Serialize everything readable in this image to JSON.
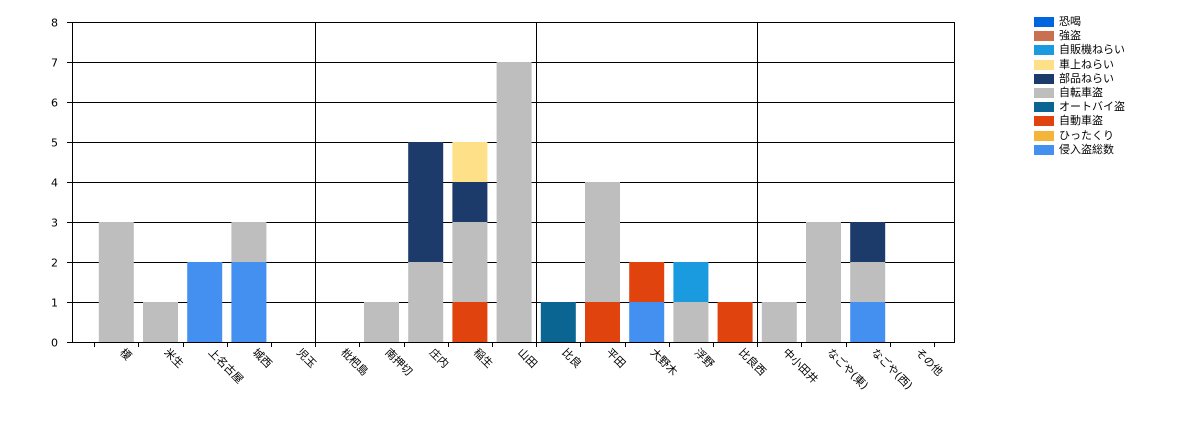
{
  "chart_data": {
    "type": "bar",
    "stacked": true,
    "title": "",
    "xlabel": "",
    "ylabel": "",
    "ylim": [
      0,
      8
    ],
    "yticks": [
      "0",
      "1",
      "2",
      "3",
      "4",
      "5",
      "6",
      "7",
      "8"
    ],
    "grid": "on",
    "legend_position": "right",
    "categories": [
      "榎",
      "米生",
      "上名古屋",
      "城西",
      "児玉",
      "枇杷島",
      "南押切",
      "庄内",
      "稲生",
      "山田",
      "比良",
      "平田",
      "大野木",
      "浮野",
      "比良西",
      "中小田井",
      "なごや(東)",
      "なごや(西)",
      "その他"
    ],
    "series": [
      {
        "name": "恐喝",
        "color": "#0066dd",
        "values": [
          0,
          0,
          0,
          0,
          0,
          0,
          0,
          0,
          0,
          0,
          0,
          0,
          0,
          0,
          0,
          0,
          0,
          0,
          0
        ]
      },
      {
        "name": "強盗",
        "color": "#c87050",
        "values": [
          0,
          0,
          0,
          0,
          0,
          0,
          0,
          0,
          0,
          0,
          0,
          0,
          0,
          0,
          0,
          0,
          0,
          0,
          0
        ]
      },
      {
        "name": "自販機ねらい",
        "color": "#1a9be0",
        "values": [
          0,
          0,
          0,
          0,
          0,
          0,
          0,
          0,
          0,
          0,
          0,
          0,
          0,
          1,
          0,
          0,
          0,
          0,
          0
        ]
      },
      {
        "name": "車上ねらい",
        "color": "#fde088",
        "values": [
          0,
          0,
          0,
          0,
          0,
          0,
          0,
          0,
          1,
          0,
          0,
          0,
          0,
          0,
          0,
          0,
          0,
          0,
          0
        ]
      },
      {
        "name": "部品ねらい",
        "color": "#1c3a6a",
        "values": [
          0,
          0,
          0,
          0,
          0,
          0,
          0,
          3,
          1,
          0,
          0,
          0,
          0,
          0,
          0,
          0,
          0,
          1,
          0
        ]
      },
      {
        "name": "自転車盗",
        "color": "#bebebe",
        "values": [
          3,
          1,
          0,
          1,
          0,
          0,
          1,
          2,
          2,
          7,
          0,
          3,
          0,
          1,
          0,
          1,
          3,
          1,
          0
        ]
      },
      {
        "name": "オートバイ盗",
        "color": "#0b6592",
        "values": [
          0,
          0,
          0,
          0,
          0,
          0,
          0,
          0,
          0,
          0,
          1,
          0,
          0,
          0,
          0,
          0,
          0,
          0,
          0
        ]
      },
      {
        "name": "自動車盗",
        "color": "#e0430e",
        "values": [
          0,
          0,
          0,
          0,
          0,
          0,
          0,
          0,
          1,
          0,
          0,
          1,
          1,
          0,
          1,
          0,
          0,
          0,
          0
        ]
      },
      {
        "name": "ひったくり",
        "color": "#f5b43a",
        "values": [
          0,
          0,
          0,
          0,
          0,
          0,
          0,
          0,
          0,
          0,
          0,
          0,
          0,
          0,
          0,
          0,
          0,
          0,
          0
        ]
      },
      {
        "name": "侵入盗総数",
        "color": "#4490f0",
        "values": [
          0,
          0,
          2,
          2,
          0,
          0,
          0,
          0,
          0,
          0,
          0,
          0,
          1,
          0,
          0,
          0,
          0,
          1,
          0
        ]
      }
    ],
    "stack_order": [
      "侵入盗総数",
      "自動車盗",
      "オートバイ盗",
      "自転車盗",
      "部品ねらい",
      "車上ねらい",
      "自販機ねらい",
      "ひったくり",
      "強盗",
      "恐喝"
    ]
  }
}
